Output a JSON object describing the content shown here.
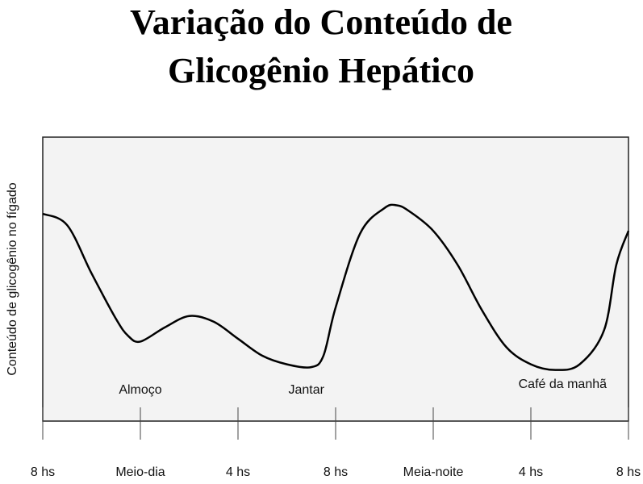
{
  "chart_data": {
    "type": "line",
    "title": [
      "Variação do Conteúdo de",
      "Glicogênio Hepático"
    ],
    "y_label": "Conteúdo de glicogênio no fígado",
    "x": [
      8,
      9,
      10,
      11,
      11.5,
      12,
      13,
      14,
      15,
      16,
      17,
      18,
      19,
      19.5,
      20,
      21,
      22,
      22.5,
      23,
      24,
      25,
      26,
      27,
      28,
      29,
      30,
      31,
      31.5,
      32
    ],
    "series": [
      {
        "color": "#000000",
        "values": [
          73,
          69,
          52,
          36,
          30,
          28,
          33,
          37,
          35,
          29,
          23,
          20,
          19,
          23,
          40,
          66,
          75,
          76,
          74,
          67,
          55,
          39,
          26,
          20,
          18,
          20,
          32,
          55,
          67
        ]
      }
    ],
    "xlim": [
      8,
      32
    ],
    "xticks": [
      {
        "value": 8,
        "label": "8 hs"
      },
      {
        "value": 12,
        "label": "Meio-dia"
      },
      {
        "value": 16,
        "label": "4 hs"
      },
      {
        "value": 20,
        "label": "8 hs"
      },
      {
        "value": 24,
        "label": "Meia-noite"
      },
      {
        "value": 28,
        "label": "4 hs"
      },
      {
        "value": 32,
        "label": "8 hs"
      }
    ],
    "ylim": [
      0,
      100
    ],
    "annotations": [
      {
        "text": "Almoço",
        "x": 12
      },
      {
        "text": "Jantar",
        "x": 18.8
      },
      {
        "text": "Café da manhã",
        "x": 29.3
      }
    ]
  }
}
